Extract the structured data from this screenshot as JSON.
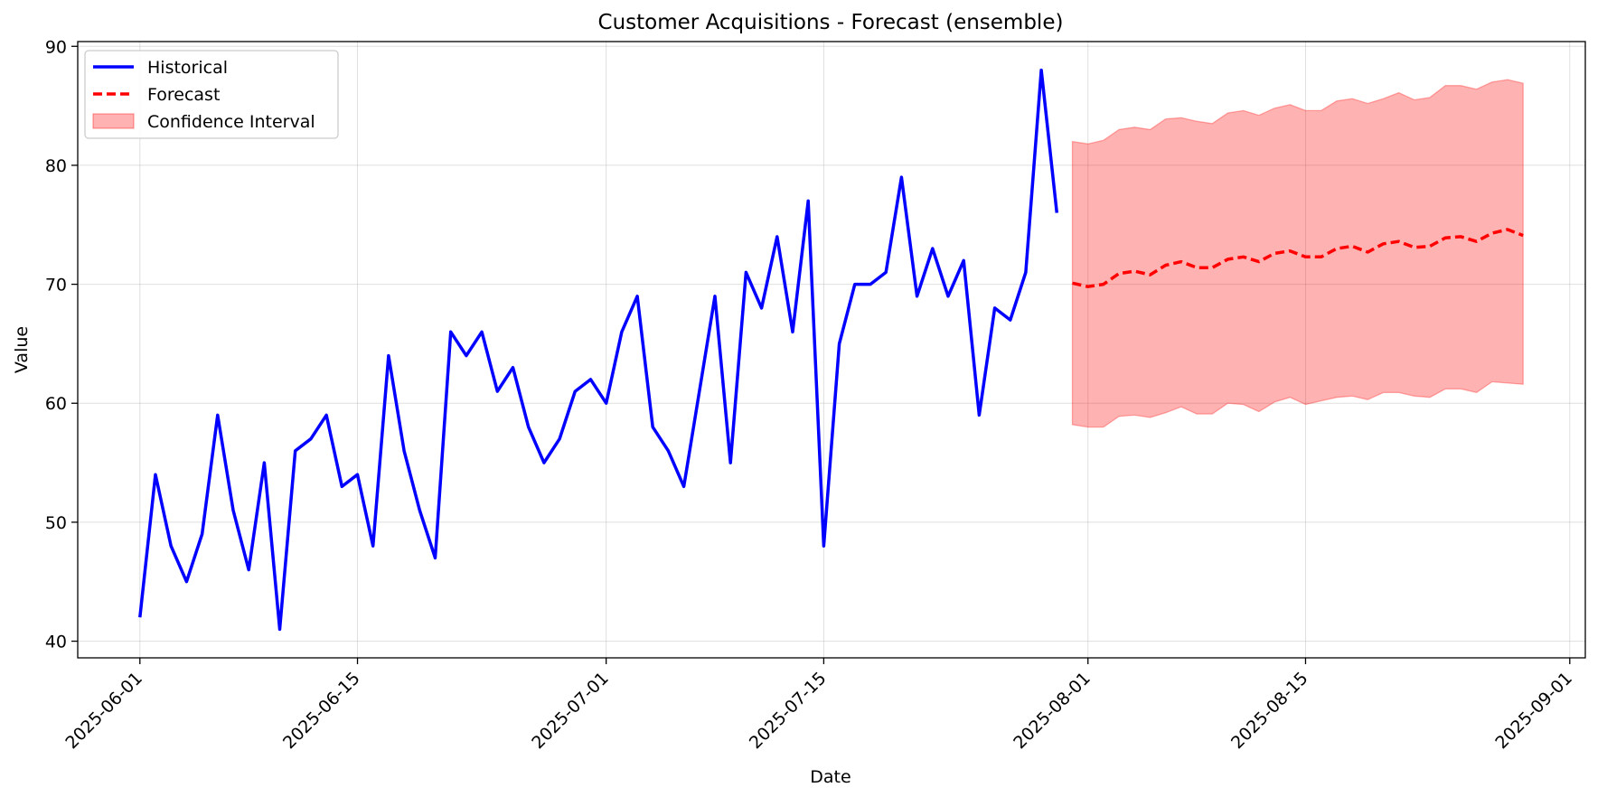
{
  "chart_data": {
    "type": "line",
    "title": "Customer Acquisitions - Forecast (ensemble)",
    "xlabel": "Date",
    "ylabel": "Value",
    "ylim": [
      38.6,
      90.4
    ],
    "grid": true,
    "legend_position": "top-left",
    "colors": {
      "historical": "#0000ff",
      "forecast": "#ff0000",
      "ci_fill": "#ff0000",
      "grid": "#b0b0b0"
    },
    "x_axis": {
      "type": "date",
      "start": "2025-05-28",
      "end": "2025-09-02",
      "ticks": [
        "2025-06-01",
        "2025-06-15",
        "2025-07-01",
        "2025-07-15",
        "2025-08-01",
        "2025-08-15",
        "2025-09-01"
      ]
    },
    "y_ticks": [
      40,
      50,
      60,
      70,
      80,
      90
    ],
    "legend": [
      "Historical",
      "Forecast",
      "Confidence Interval"
    ],
    "series": [
      {
        "name": "Historical",
        "style": "solid",
        "x_start": "2025-06-01",
        "values": [
          42,
          54,
          48,
          45,
          49,
          59,
          51,
          46,
          55,
          41,
          56,
          57,
          59,
          53,
          54,
          48,
          64,
          56,
          51,
          47,
          66,
          64,
          66,
          61,
          63,
          58,
          55,
          57,
          61,
          62,
          60,
          66,
          69,
          58,
          56,
          53,
          61,
          69,
          55,
          71,
          68,
          74,
          66,
          77,
          48,
          65,
          70,
          70,
          71,
          79,
          69,
          73,
          69,
          72,
          59,
          68,
          67,
          71,
          88,
          76
        ]
      },
      {
        "name": "Forecast",
        "style": "dashed",
        "x_start": "2025-07-31",
        "values": [
          70.1,
          69.8,
          70.0,
          70.9,
          71.1,
          70.8,
          71.6,
          71.9,
          71.4,
          71.4,
          72.1,
          72.3,
          71.9,
          72.6,
          72.8,
          72.3,
          72.3,
          73.0,
          73.2,
          72.7,
          73.4,
          73.6,
          73.1,
          73.2,
          73.9,
          74.0,
          73.6,
          74.3,
          74.6,
          74.1
        ]
      }
    ],
    "confidence_interval": {
      "name": "Confidence Interval",
      "x_start": "2025-07-31",
      "upper": [
        82.0,
        81.8,
        82.1,
        83.0,
        83.2,
        83.0,
        83.9,
        84.0,
        83.7,
        83.5,
        84.4,
        84.6,
        84.2,
        84.8,
        85.1,
        84.6,
        84.6,
        85.4,
        85.6,
        85.2,
        85.6,
        86.1,
        85.5,
        85.7,
        86.7,
        86.7,
        86.4,
        87.0,
        87.2,
        86.9
      ],
      "lower": [
        58.2,
        58.0,
        58.0,
        58.9,
        59.0,
        58.8,
        59.2,
        59.7,
        59.1,
        59.1,
        60.0,
        59.9,
        59.3,
        60.1,
        60.5,
        59.9,
        60.2,
        60.5,
        60.6,
        60.3,
        60.9,
        60.9,
        60.6,
        60.5,
        61.2,
        61.2,
        60.9,
        61.8,
        61.7,
        61.6
      ]
    }
  }
}
